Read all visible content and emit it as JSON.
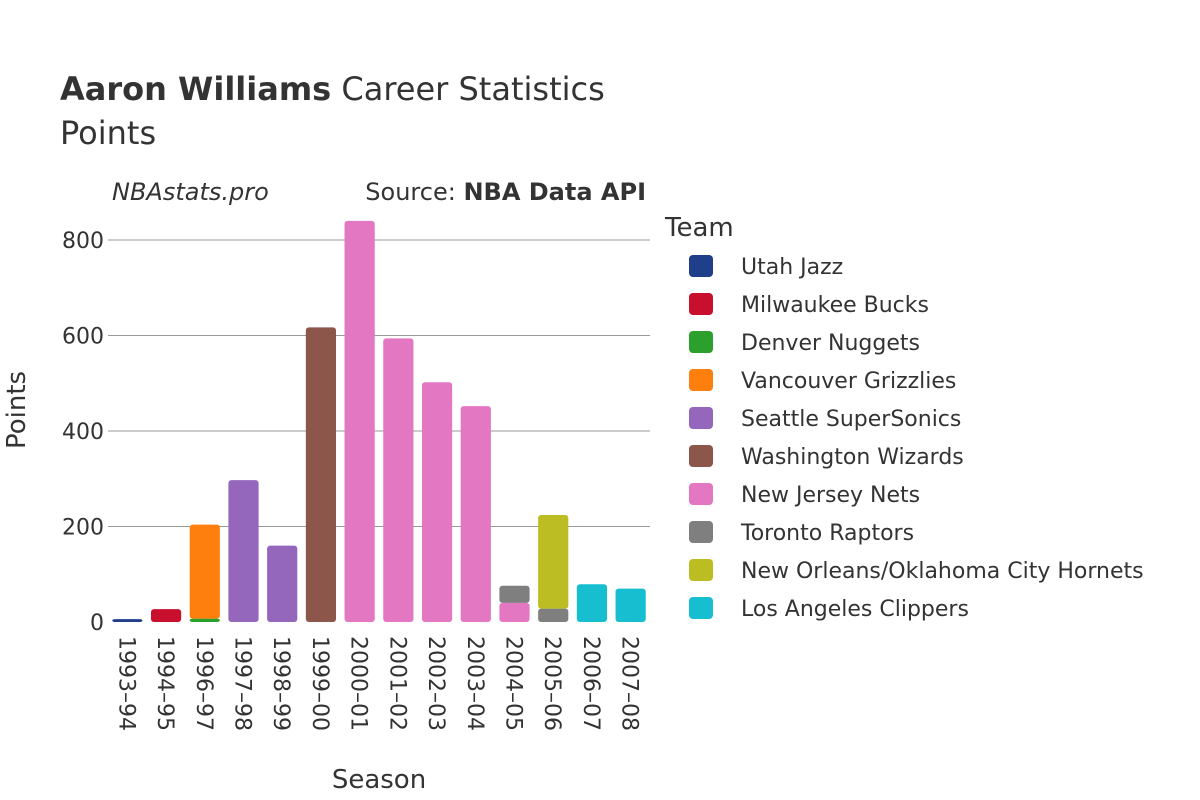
{
  "chart_data": {
    "type": "bar",
    "stacked": true,
    "title": {
      "bold": "Aaron Williams",
      "rest": " Career Statistics",
      "subtitle": "Points"
    },
    "site": "NBAstats.pro",
    "source_label": "Source: ",
    "source_value": "NBA Data API",
    "xlabel": "Season",
    "ylabel": "Points",
    "ylim": [
      0,
      880
    ],
    "yticks": [
      0,
      200,
      400,
      600,
      800
    ],
    "grid": true,
    "legend_title": "Team",
    "legend_position": "right",
    "categories": [
      "1993–94",
      "1994–95",
      "1996–97",
      "1997–98",
      "1998–99",
      "1999–00",
      "2000–01",
      "2001–02",
      "2002–03",
      "2003–04",
      "2004–05",
      "2005–06",
      "2006–07",
      "2007–08"
    ],
    "series": [
      {
        "name": "Utah Jazz",
        "color": "#1f3f8a",
        "values": [
          6,
          0,
          0,
          0,
          0,
          0,
          0,
          0,
          0,
          0,
          0,
          0,
          0,
          0
        ]
      },
      {
        "name": "Milwaukee Bucks",
        "color": "#c8102e",
        "values": [
          0,
          27,
          0,
          0,
          0,
          0,
          0,
          0,
          0,
          0,
          0,
          0,
          0,
          0
        ]
      },
      {
        "name": "Denver Nuggets",
        "color": "#2ca02c",
        "values": [
          0,
          0,
          7,
          0,
          0,
          0,
          0,
          0,
          0,
          0,
          0,
          0,
          0,
          0
        ]
      },
      {
        "name": "Vancouver Grizzlies",
        "color": "#ff7f0e",
        "values": [
          0,
          0,
          197,
          0,
          0,
          0,
          0,
          0,
          0,
          0,
          0,
          0,
          0,
          0
        ]
      },
      {
        "name": "Seattle SuperSonics",
        "color": "#9467bd",
        "values": [
          0,
          0,
          0,
          297,
          160,
          0,
          0,
          0,
          0,
          0,
          0,
          0,
          0,
          0
        ]
      },
      {
        "name": "Washington Wizards",
        "color": "#8c564b",
        "values": [
          0,
          0,
          0,
          0,
          0,
          617,
          0,
          0,
          0,
          0,
          0,
          0,
          0,
          0
        ]
      },
      {
        "name": "New Jersey Nets",
        "color": "#e377c2",
        "values": [
          0,
          0,
          0,
          0,
          0,
          0,
          840,
          594,
          502,
          452,
          40,
          0,
          0,
          0
        ]
      },
      {
        "name": "Toronto Raptors",
        "color": "#7f7f7f",
        "values": [
          0,
          0,
          0,
          0,
          0,
          0,
          0,
          0,
          0,
          0,
          36,
          28,
          0,
          0
        ]
      },
      {
        "name": "New Orleans/Oklahoma City Hornets",
        "color": "#bcbd22",
        "values": [
          0,
          0,
          0,
          0,
          0,
          0,
          0,
          0,
          0,
          0,
          0,
          196,
          0,
          0
        ]
      },
      {
        "name": "Los Angeles Clippers",
        "color": "#17becf",
        "values": [
          0,
          0,
          0,
          0,
          0,
          0,
          0,
          0,
          0,
          0,
          0,
          0,
          79,
          70
        ]
      }
    ]
  }
}
